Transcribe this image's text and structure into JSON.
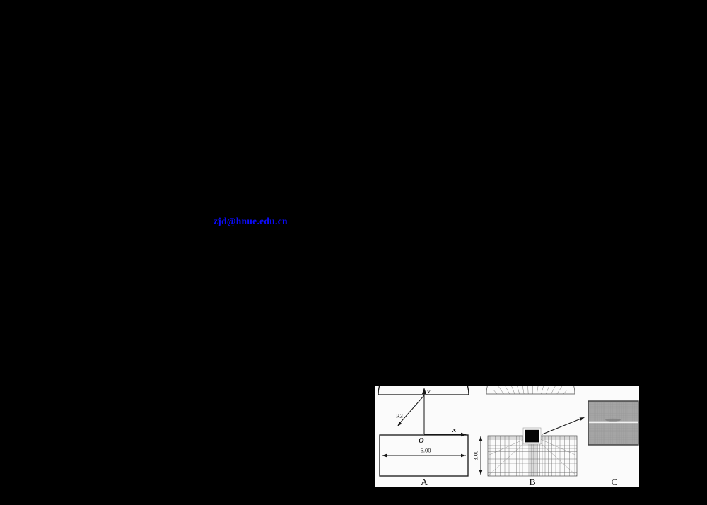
{
  "page": {
    "email_link": "zjd@hnue.edu.cn"
  },
  "figure": {
    "schematic": {
      "y_axis_label": "y",
      "x_axis_label": "x",
      "origin_label": "O",
      "radius_label": "R3",
      "width_dimension": "6.00",
      "height_dimension": "3.00"
    },
    "panel_labels": {
      "a": "A",
      "b": "B",
      "c": "C"
    },
    "colors": {
      "link_blue": "#0b0bfd",
      "page_background": "#000000",
      "figure_background": "#fbfbfb",
      "mesh_line_gray": "#6a6a6a",
      "panel_c_gray": "#a5a5a5"
    }
  }
}
